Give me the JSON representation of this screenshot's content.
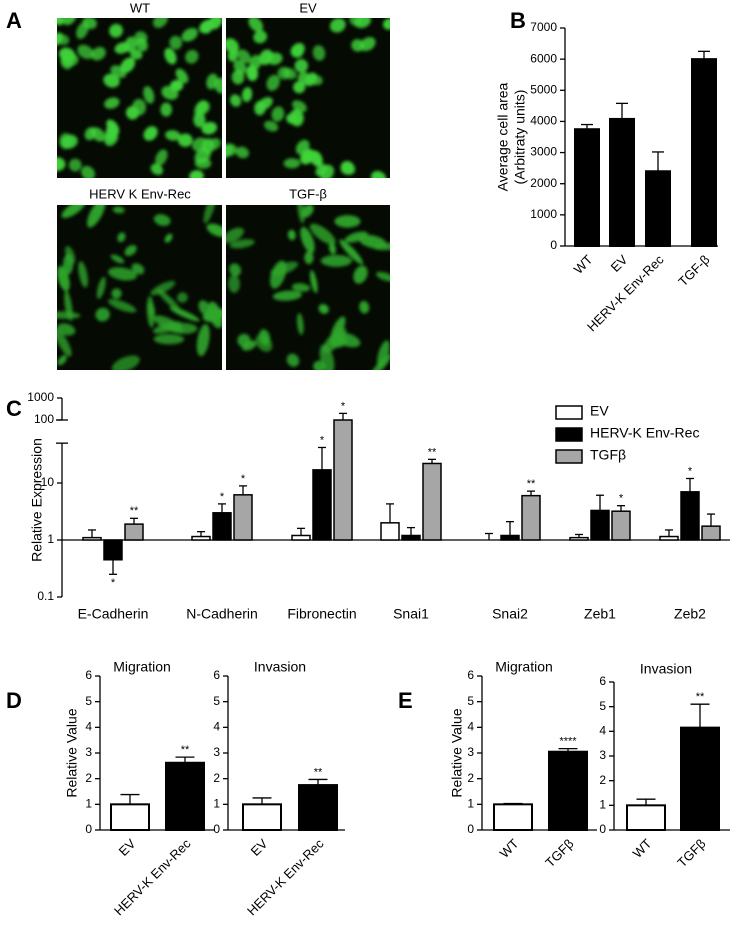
{
  "panel_labels": [
    "A",
    "B",
    "C",
    "D",
    "E"
  ],
  "micrographs": {
    "labels": [
      "WT",
      "EV",
      "HERV K Env-Rec",
      "TGF-β"
    ]
  },
  "chart_data": [
    {
      "type": "bar",
      "y_label": "Average cell area",
      "y_label_2": "(Arbitraty units)",
      "categories": [
        "WT",
        "EV",
        "HERV-K Env-Rec",
        "TGF-β"
      ],
      "values": [
        3750,
        4080,
        2400,
        6000
      ],
      "errors": [
        150,
        500,
        620,
        250
      ],
      "color": "#000000",
      "ylim": [
        0,
        7000
      ],
      "yticks": [
        0,
        1000,
        2000,
        3000,
        4000,
        5000,
        6000,
        7000
      ]
    },
    {
      "type": "grouped_bar",
      "y_label": "Relative Expression",
      "log_scale": true,
      "axis_break": [
        50,
        100
      ],
      "categories": [
        "E-Cadherin",
        "N-Cadherin",
        "Fibronectin",
        "Snai1",
        "Snai2",
        "Zeb1",
        "Zeb2"
      ],
      "series": [
        {
          "name": "EV",
          "color": "#ffffff",
          "values": [
            1.1,
            1.15,
            1.2,
            2.0,
            1.0,
            1.1,
            1.15
          ],
          "errors": [
            0.4,
            0.25,
            0.4,
            2.3,
            0.3,
            0.15,
            0.35
          ],
          "annotations": [
            null,
            null,
            null,
            null,
            null,
            null,
            null
          ]
        },
        {
          "name": "HERV-K Env-Rec",
          "color": "#000000",
          "values": [
            0.45,
            3.0,
            17,
            1.2,
            1.2,
            3.3,
            7.0
          ],
          "errors": [
            0.2,
            1.3,
            25,
            0.45,
            0.9,
            2.8,
            5
          ],
          "annotations": [
            "*",
            "*",
            "*",
            null,
            null,
            null,
            "*"
          ]
        },
        {
          "name": "TGFβ",
          "color": "#a6a6a6",
          "values": [
            1.9,
            6.2,
            100,
            22,
            6.0,
            3.2,
            1.75
          ],
          "errors": [
            0.5,
            2.7,
            100,
            4,
            1.2,
            0.8,
            1.1
          ],
          "annotations": [
            "**",
            "*",
            "*",
            "**",
            "**",
            "*",
            null
          ]
        }
      ],
      "ylim": [
        0.1,
        1000
      ],
      "yticks": [
        0.1,
        1,
        10,
        100,
        1000
      ],
      "legend": "upper-right"
    },
    {
      "type": "bar",
      "title": "Migration",
      "y_label": "Relative Value",
      "categories": [
        "EV",
        "HERV-K Env-Rec"
      ],
      "values": [
        1.0,
        2.62
      ],
      "errors": [
        0.38,
        0.22
      ],
      "colors": [
        "#ffffff",
        "#000000"
      ],
      "annotations": [
        null,
        "**"
      ],
      "ylim": [
        0,
        6
      ],
      "yticks": [
        0,
        1,
        2,
        3,
        4,
        5,
        6
      ]
    },
    {
      "type": "bar",
      "title": "Invasion",
      "categories": [
        "EV",
        "HERV-K Env-Rec"
      ],
      "values": [
        1.0,
        1.75
      ],
      "errors": [
        0.25,
        0.22
      ],
      "colors": [
        "#ffffff",
        "#000000"
      ],
      "annotations": [
        null,
        "**"
      ],
      "ylim": [
        0,
        6
      ],
      "yticks": [
        0,
        1,
        2,
        3,
        4,
        5,
        6
      ]
    },
    {
      "type": "bar",
      "title": "Migration",
      "y_label": "Relative Value",
      "categories": [
        "WT",
        "TGFβ"
      ],
      "values": [
        1.0,
        3.05
      ],
      "errors": [
        0.03,
        0.12
      ],
      "colors": [
        "#ffffff",
        "#000000"
      ],
      "annotations": [
        null,
        "****"
      ],
      "ylim": [
        0,
        6
      ],
      "yticks": [
        0,
        1,
        2,
        3,
        4,
        5,
        6
      ]
    },
    {
      "type": "bar",
      "title": "Invasion",
      "categories": [
        "WT",
        "TGFβ"
      ],
      "values": [
        1.0,
        4.15
      ],
      "errors": [
        0.25,
        0.95
      ],
      "colors": [
        "#ffffff",
        "#000000"
      ],
      "annotations": [
        null,
        "**"
      ],
      "ylim": [
        0,
        6
      ],
      "yticks": [
        0,
        1,
        2,
        3,
        4,
        5,
        6
      ]
    }
  ]
}
